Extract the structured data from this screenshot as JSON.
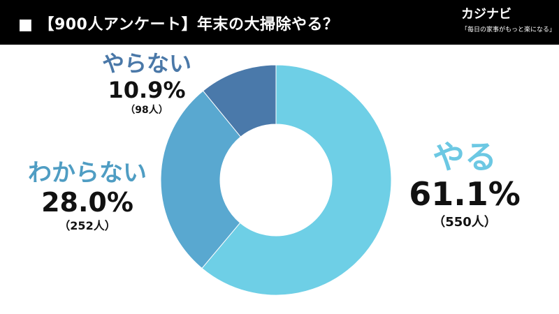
{
  "header": {
    "title": "■ 【900人アンケート】年末の大掃除やる？",
    "brand_name": "カジナビ",
    "brand_tagline": "「毎日の家事がもっと楽になる」"
  },
  "labels": {
    "yaru": {
      "name": "やる",
      "percent": "61.1%",
      "count": "（550人）"
    },
    "wakaranai": {
      "name": "わからない",
      "percent": "28.0%",
      "count": "（252人）"
    },
    "yaranai": {
      "name": "やらない",
      "percent": "10.9%",
      "count": "（98人）"
    }
  },
  "chart_data": {
    "type": "pie",
    "donut": true,
    "title": "【900人アンケート】年末の大掃除やる？",
    "total_respondents": 900,
    "start": "12 o'clock",
    "direction": "clockwise",
    "slices": [
      {
        "label": "やる",
        "value": 61.1,
        "count": 550,
        "color": "#6ecfe6"
      },
      {
        "label": "わからない",
        "value": 28.0,
        "count": 252,
        "color": "#59a8d0"
      },
      {
        "label": "やらない",
        "value": 10.9,
        "count": 98,
        "color": "#4a79aa"
      }
    ]
  }
}
